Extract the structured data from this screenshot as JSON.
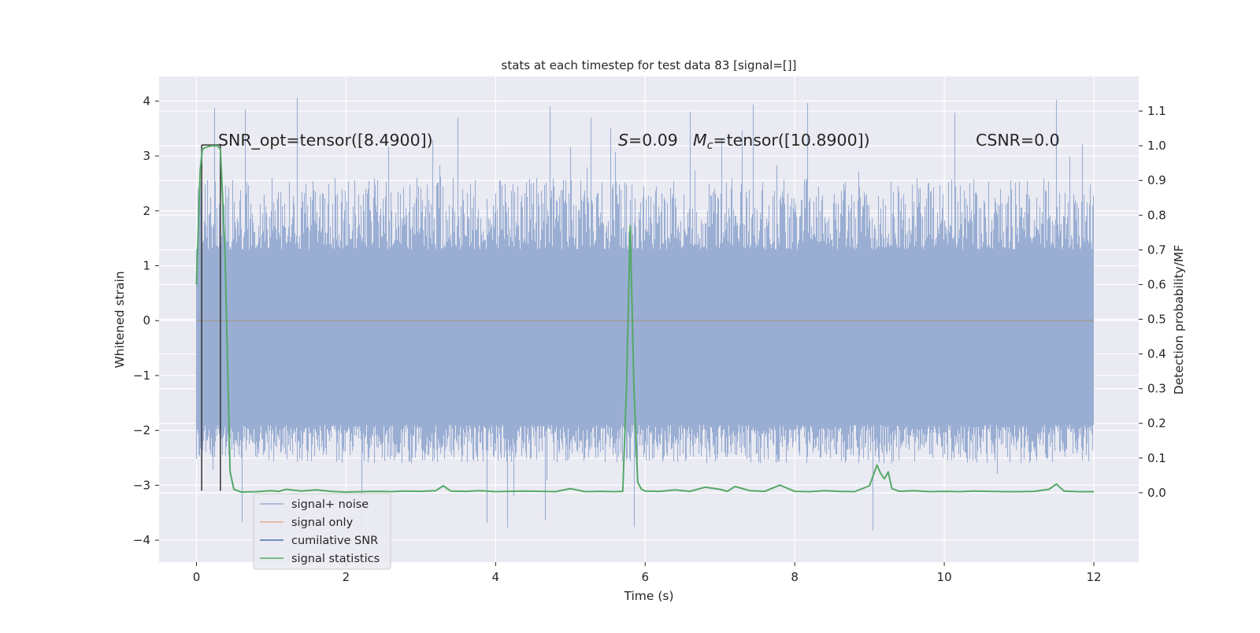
{
  "chart_data": {
    "type": "line",
    "title": "stats at each timestep for test data 83 [signal=[]]",
    "xlabel": "Time (s)",
    "ylabel_left": "Whitened strain",
    "ylabel_right": "Detection probability/MF",
    "xlim": [
      -0.5,
      12.6
    ],
    "ylim_left": [
      -4.4,
      4.45
    ],
    "ylim_right": [
      -0.2,
      1.2
    ],
    "xticks": [
      0,
      2,
      4,
      6,
      8,
      10,
      12
    ],
    "yticks_left": [
      -4,
      -3,
      -2,
      -1,
      0,
      1,
      2,
      3,
      4
    ],
    "yticks_right": [
      0.0,
      0.1,
      0.2,
      0.3,
      0.4,
      0.5,
      0.6,
      0.7,
      0.8,
      0.9,
      1.0,
      1.1
    ],
    "grid": true,
    "legend_placement": "lower-left",
    "annotations": {
      "snr_opt": "SNR_opt=tensor([8.4900])",
      "s_symbol": "S",
      "s_value": "=0.09",
      "mc_symbol": "M",
      "mc_subscript": "c",
      "mc_value": "=tensor([10.8900])",
      "csnr": "CSNR=0.0"
    },
    "markers": {
      "x": [
        0.07,
        0.32
      ],
      "y_bottom": -3.1,
      "y_top": 3.2
    },
    "series": [
      {
        "name": "signal+ noise",
        "color": "#9aaed3",
        "axis": "left",
        "kind": "noise-band",
        "x_range": [
          0,
          12
        ],
        "core_range": [
          -1.9,
          1.3
        ],
        "typical_peak_range": [
          -2.6,
          2.6
        ],
        "max_excursion_range": [
          -3.95,
          4.1
        ]
      },
      {
        "name": "signal only",
        "color": "#dd8452",
        "axis": "left",
        "x": [
          0,
          12
        ],
        "y": [
          0,
          0
        ]
      },
      {
        "name": "cumilative SNR",
        "color": "#4c72b0",
        "axis": "left",
        "x": [],
        "y": []
      },
      {
        "name": "signal statistics",
        "color": "#55a868",
        "axis": "right",
        "x": [
          0.0,
          0.05,
          0.08,
          0.12,
          0.2,
          0.28,
          0.32,
          0.38,
          0.45,
          0.5,
          0.6,
          0.8,
          1.0,
          1.1,
          1.2,
          1.4,
          1.6,
          1.8,
          2.0,
          2.2,
          2.4,
          2.6,
          2.8,
          3.0,
          3.2,
          3.3,
          3.4,
          3.6,
          3.8,
          4.0,
          4.2,
          4.4,
          4.6,
          4.8,
          5.0,
          5.2,
          5.4,
          5.6,
          5.7,
          5.75,
          5.8,
          5.85,
          5.9,
          5.95,
          6.0,
          6.2,
          6.4,
          6.6,
          6.8,
          7.0,
          7.1,
          7.2,
          7.4,
          7.6,
          7.8,
          8.0,
          8.2,
          8.4,
          8.6,
          8.8,
          9.0,
          9.1,
          9.15,
          9.2,
          9.25,
          9.3,
          9.4,
          9.6,
          9.8,
          10.0,
          10.2,
          10.4,
          10.6,
          10.8,
          11.0,
          11.2,
          11.4,
          11.5,
          11.6,
          11.8,
          12.0
        ],
        "y": [
          0.6,
          0.93,
          0.99,
          0.995,
          1.0,
          1.0,
          0.99,
          0.7,
          0.06,
          0.01,
          0.002,
          0.003,
          0.006,
          0.004,
          0.01,
          0.005,
          0.008,
          0.004,
          0.002,
          0.003,
          0.004,
          0.003,
          0.005,
          0.004,
          0.006,
          0.02,
          0.005,
          0.004,
          0.006,
          0.003,
          0.004,
          0.005,
          0.004,
          0.003,
          0.012,
          0.003,
          0.004,
          0.003,
          0.004,
          0.3,
          0.77,
          0.3,
          0.03,
          0.01,
          0.005,
          0.004,
          0.008,
          0.004,
          0.016,
          0.01,
          0.004,
          0.018,
          0.006,
          0.004,
          0.022,
          0.004,
          0.003,
          0.006,
          0.004,
          0.003,
          0.02,
          0.08,
          0.055,
          0.04,
          0.06,
          0.012,
          0.004,
          0.006,
          0.003,
          0.004,
          0.003,
          0.005,
          0.004,
          0.003,
          0.003,
          0.004,
          0.01,
          0.025,
          0.005,
          0.003,
          0.003
        ]
      }
    ]
  }
}
